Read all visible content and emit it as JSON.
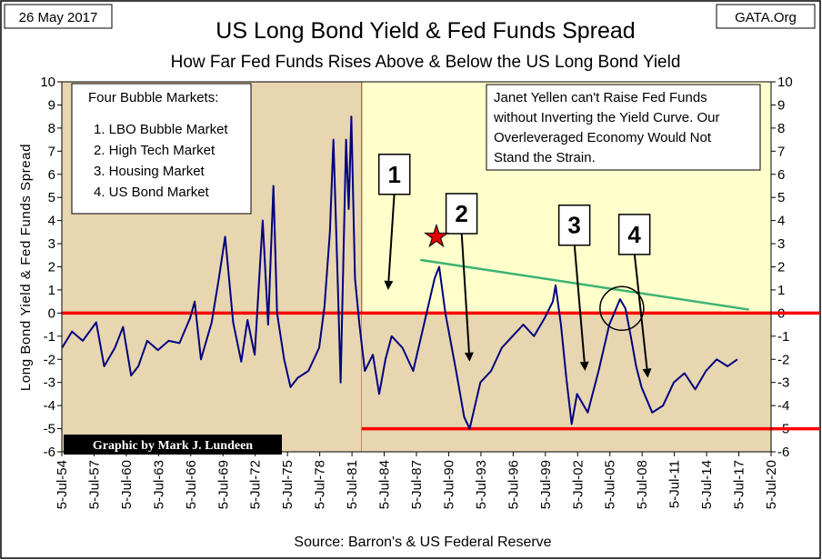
{
  "header": {
    "date_label": "26 May 2017",
    "source_label": "GATA.Org",
    "title": "US Long Bond Yield & Fed Funds Spread",
    "subtitle": "How Far Fed Funds Rises Above & Below the US Long Bond Yield"
  },
  "colors": {
    "plot_bg": "#FFFFCC",
    "shade": "#E8D6B0",
    "series": "#000080",
    "zero_line": "#FF0000",
    "trend_line": "#3CB371",
    "frame": "#000000"
  },
  "chart_data": {
    "type": "line",
    "title": "US Long Bond Yield & Fed Funds Spread",
    "subtitle": "How Far Fed Funds Rises Above & Below the US Long Bond Yield",
    "ylabel": "Long Bond Yield & Fed Funds Spread",
    "xlabel": "",
    "source": "Source: Barron's & US Federal Reserve",
    "credit": "Graphic by Mark J. Lundeen",
    "ylim": [
      -6,
      10
    ],
    "yticks": [
      -6,
      -5,
      -4,
      -3,
      -2,
      -1,
      0,
      1,
      2,
      3,
      4,
      5,
      6,
      7,
      8,
      9,
      10
    ],
    "xlim": [
      "1954-07-05",
      "2020-07-05"
    ],
    "xtick_labels": [
      "5-Jul-54",
      "5-Jul-57",
      "5-Jul-60",
      "5-Jul-63",
      "5-Jul-66",
      "5-Jul-69",
      "5-Jul-72",
      "5-Jul-75",
      "5-Jul-78",
      "5-Jul-81",
      "5-Jul-84",
      "5-Jul-87",
      "5-Jul-90",
      "5-Jul-93",
      "5-Jul-96",
      "5-Jul-99",
      "5-Jul-02",
      "5-Jul-05",
      "5-Jul-08",
      "5-Jul-11",
      "5-Jul-14",
      "5-Jul-17",
      "5-Jul-20"
    ],
    "grid": false,
    "shaded_periods": [
      [
        "1954-07-05",
        "1982-06-01"
      ],
      [
        "1982-06-01",
        "2020-07-05"
      ]
    ],
    "shaded_ranges": [
      [
        -6,
        10
      ],
      [
        -6,
        0
      ]
    ],
    "series": [
      {
        "x": [
          "1954-07",
          "1955-06",
          "1956-06",
          "1957-09",
          "1958-06",
          "1959-06",
          "1960-03",
          "1960-12",
          "1961-08",
          "1962-06",
          "1963-06",
          "1964-06",
          "1965-06",
          "1966-06",
          "1966-11",
          "1967-06",
          "1968-06",
          "1969-02",
          "1969-09",
          "1970-06",
          "1971-03",
          "1971-10",
          "1972-06",
          "1973-03",
          "1973-09",
          "1974-03",
          "1974-07",
          "1975-03",
          "1975-10",
          "1976-06",
          "1977-06",
          "1978-06",
          "1978-12",
          "1979-06",
          "1979-10",
          "1980-03",
          "1980-06",
          "1980-12",
          "1981-03",
          "1981-06",
          "1981-10",
          "1982-03",
          "1982-09",
          "1983-06",
          "1984-01",
          "1984-08",
          "1985-03",
          "1986-03",
          "1987-03",
          "1988-03",
          "1989-03",
          "1989-08",
          "1990-03",
          "1991-03",
          "1991-12",
          "1992-06",
          "1993-06",
          "1994-06",
          "1995-06",
          "1996-06",
          "1997-06",
          "1998-06",
          "1999-06",
          "2000-03",
          "2000-06",
          "2000-12",
          "2001-06",
          "2001-12",
          "2002-06",
          "2003-06",
          "2004-06",
          "2005-06",
          "2006-06",
          "2006-12",
          "2007-06",
          "2007-12",
          "2008-06",
          "2009-06",
          "2010-06",
          "2011-06",
          "2012-06",
          "2013-06",
          "2014-06",
          "2015-06",
          "2016-06",
          "2017-05"
        ],
        "values": [
          -1.5,
          -0.8,
          -1.2,
          -0.4,
          -2.3,
          -1.5,
          -0.6,
          -2.7,
          -2.3,
          -1.2,
          -1.6,
          -1.2,
          -1.3,
          -0.2,
          0.5,
          -2.0,
          -0.4,
          1.5,
          3.3,
          -0.4,
          -2.1,
          -0.3,
          -1.8,
          4.0,
          -0.5,
          5.5,
          0.0,
          -2.0,
          -3.2,
          -2.8,
          -2.5,
          -1.5,
          0.3,
          3.5,
          7.5,
          1.0,
          -3.0,
          7.5,
          4.5,
          8.5,
          1.5,
          -0.5,
          -2.5,
          -1.8,
          -3.5,
          -2.0,
          -1.0,
          -1.5,
          -2.5,
          -0.5,
          1.5,
          2.0,
          0.0,
          -2.5,
          -4.5,
          -5.0,
          -3.0,
          -2.5,
          -1.5,
          -1.0,
          -0.5,
          -1.0,
          -0.2,
          0.5,
          1.2,
          -0.5,
          -2.8,
          -4.8,
          -3.5,
          -4.3,
          -2.5,
          -0.5,
          0.6,
          0.2,
          -1.0,
          -2.3,
          -3.2,
          -4.3,
          -4.0,
          -3.0,
          -2.6,
          -3.3,
          -2.5,
          -2.0,
          -2.3,
          -2.0
        ]
      }
    ],
    "annotations": {
      "bubbles_box": {
        "title": "Four Bubble Markets:",
        "items": [
          "1. LBO Bubble Market",
          "2. High Tech Market",
          "3. Housing Market",
          "4. US Bond Market"
        ]
      },
      "yellen_box": {
        "lines": [
          "Janet Yellen  can't Raise Fed Funds",
          "without Inverting the Yield Curve.  Our",
          "Overleveraged Economy Would Not",
          "Stand the Strain."
        ]
      },
      "markers": [
        {
          "label": "1",
          "box_center": [
            "1985-06",
            6.0
          ],
          "arrow_to": [
            "1984-11",
            1.0
          ]
        },
        {
          "label": "2",
          "box_center": [
            "1991-09",
            4.3
          ],
          "arrow_to": [
            "1992-06",
            -2.1
          ]
        },
        {
          "label": "3",
          "box_center": [
            "2002-03",
            3.8
          ],
          "arrow_to": [
            "2003-03",
            -2.5
          ]
        },
        {
          "label": "4",
          "box_center": [
            "2007-10",
            3.4
          ],
          "arrow_to": [
            "2009-01",
            -2.8
          ]
        }
      ],
      "star": [
        "1989-05",
        3.3
      ],
      "circle": [
        "2006-08",
        0.2
      ],
      "trendline": [
        [
          "1987-11",
          2.3
        ],
        [
          "2018-06",
          0.15
        ]
      ],
      "zero_line": 0,
      "floor_line": -5
    }
  }
}
